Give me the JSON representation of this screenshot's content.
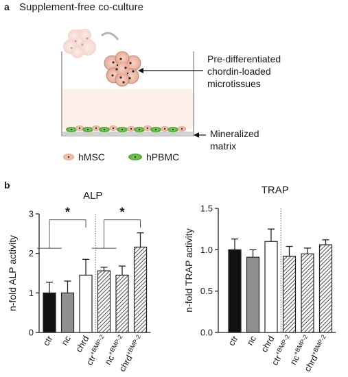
{
  "panel_a": {
    "letter": "a",
    "title": "Supplement-free co-culture",
    "callout_top": [
      "Pre-differentiated",
      "chordin-loaded",
      "microtissues"
    ],
    "callout_bottom": [
      "Mineralized",
      "matrix"
    ],
    "legend": [
      {
        "label": "hMSC",
        "color": "#f2b9a6"
      },
      {
        "label": "hPBMC",
        "color": "#6cbf4a"
      }
    ]
  },
  "panel_b": {
    "letter": "b"
  },
  "chart_data": [
    {
      "type": "bar",
      "title": "ALP",
      "ylabel": "n-fold ALP activity",
      "xlabel": "",
      "ylim": [
        0,
        3
      ],
      "yticks": [
        0,
        1,
        2,
        3
      ],
      "categories": [
        "ctr",
        "nc",
        "chrd",
        "ctr",
        "nc",
        "chrd"
      ],
      "category_superscripts": [
        "",
        "",
        "",
        "+BMP-2",
        "+BMP-2",
        "+BMP-2"
      ],
      "values": [
        1.0,
        1.0,
        1.45,
        1.56,
        1.45,
        2.16
      ],
      "errors": [
        0.27,
        0.3,
        0.4,
        0.09,
        0.23,
        0.36
      ],
      "fills": [
        "black",
        "gray",
        "white",
        "hatch",
        "hatch",
        "hatch"
      ],
      "significance": [
        {
          "from": 0,
          "to": 2,
          "label": "*"
        },
        {
          "from": 3,
          "to": 5,
          "label": "*"
        }
      ],
      "divider_after_index": 2,
      "grid": false
    },
    {
      "type": "bar",
      "title": "TRAP",
      "ylabel": "n-fold TRAP activity",
      "xlabel": "",
      "ylim": [
        0,
        1.5
      ],
      "yticks": [
        0.0,
        0.5,
        1.0,
        1.5
      ],
      "categories": [
        "ctr",
        "nc",
        "chrd",
        "ctr",
        "nc",
        "chrd"
      ],
      "category_superscripts": [
        "",
        "",
        "",
        "+BMP-2",
        "+BMP-2",
        "+BMP-2"
      ],
      "values": [
        1.0,
        0.91,
        1.1,
        0.92,
        0.95,
        1.06
      ],
      "errors": [
        0.13,
        0.09,
        0.15,
        0.12,
        0.07,
        0.06
      ],
      "fills": [
        "black",
        "gray",
        "white",
        "hatch",
        "hatch",
        "hatch"
      ],
      "significance": [],
      "divider_after_index": 2,
      "grid": false
    }
  ]
}
